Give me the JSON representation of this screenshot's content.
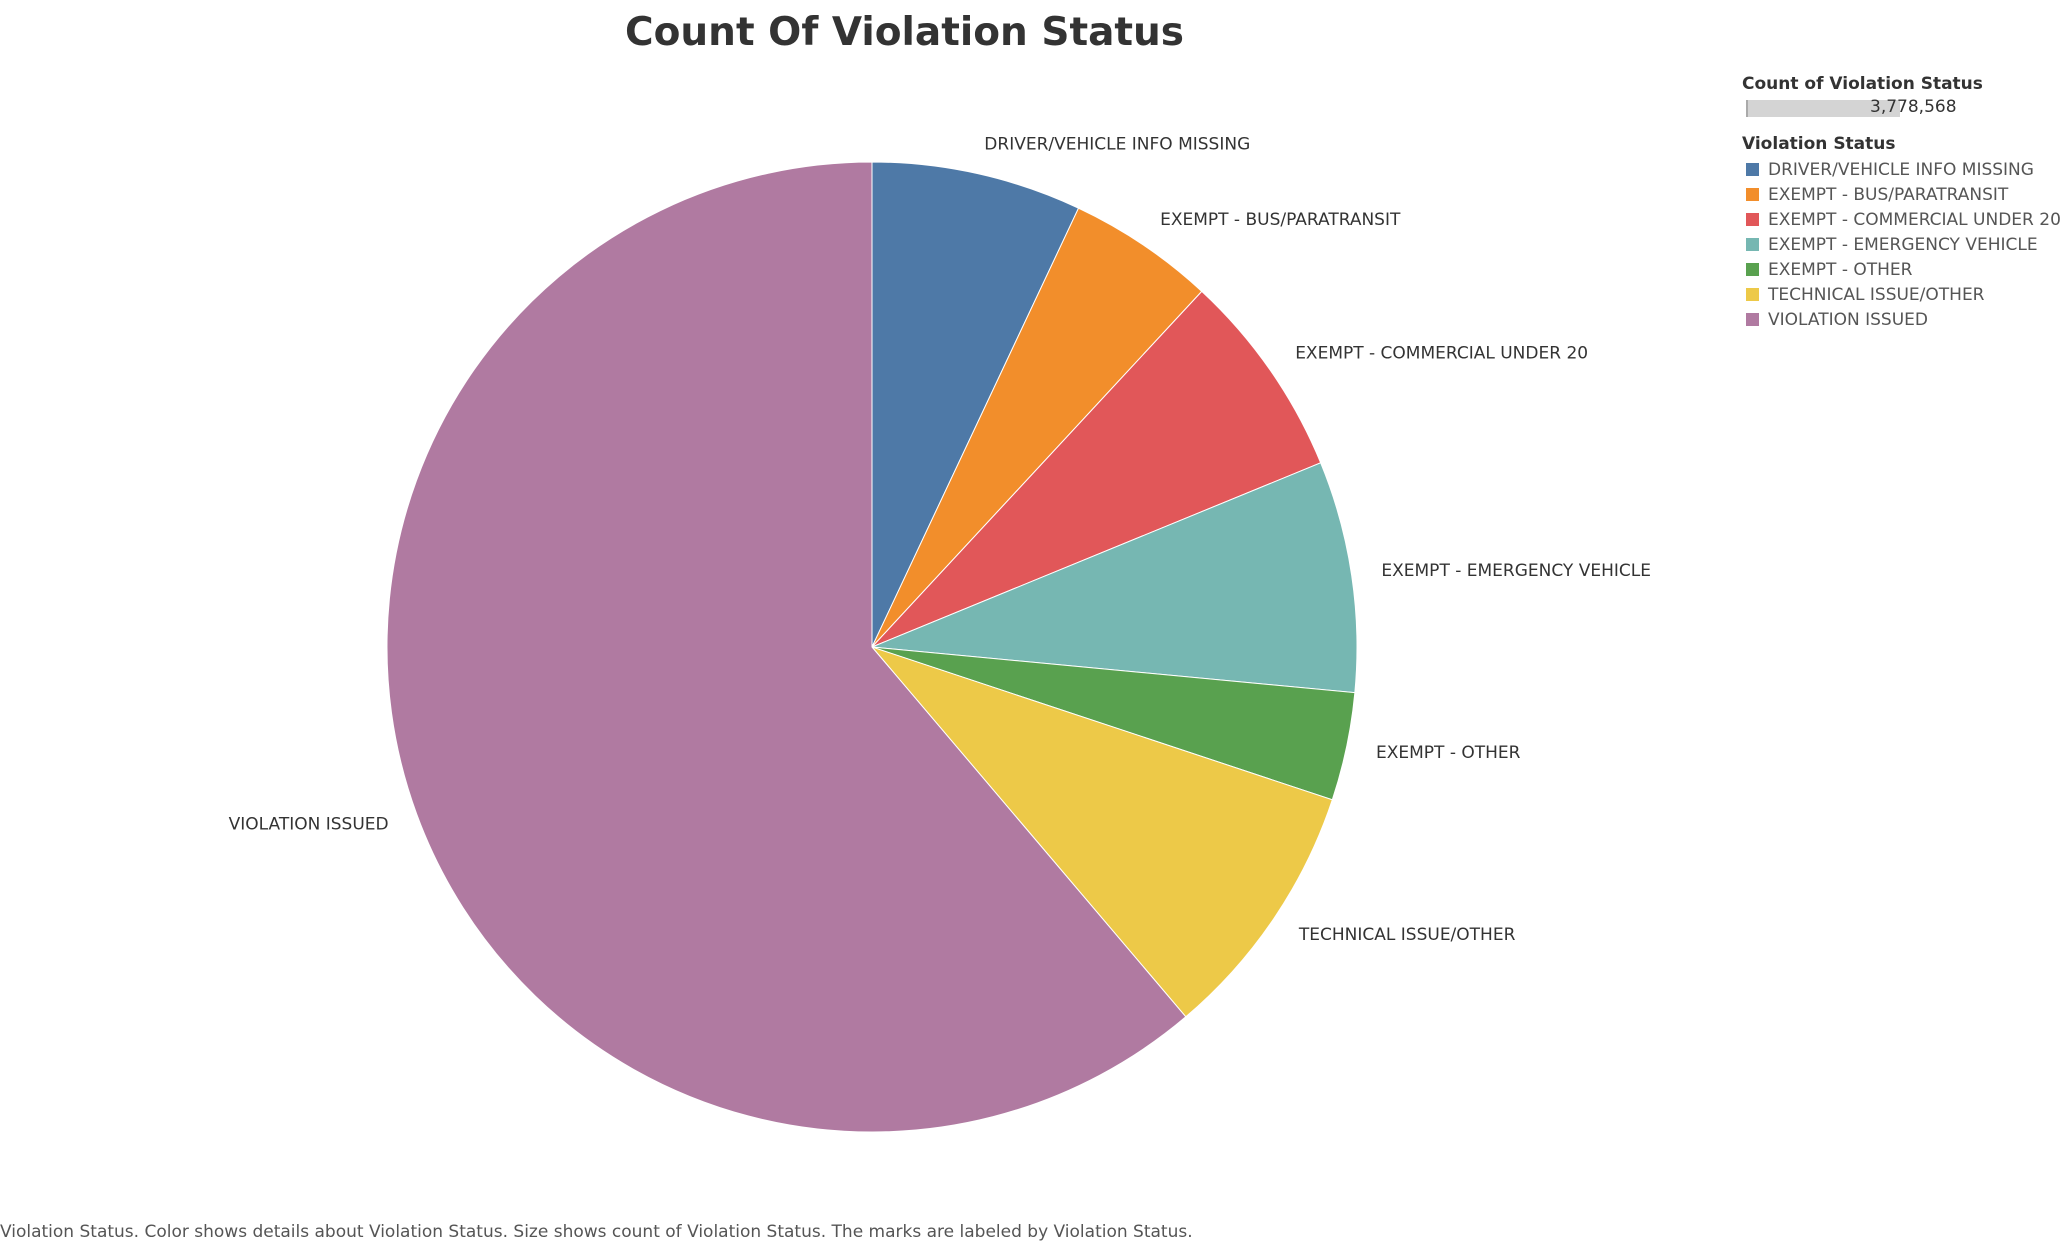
{
  "chart_data": {
    "type": "pie",
    "title": "Count Of Violation Status",
    "categories": [
      "DRIVER/VEHICLE INFO MISSING",
      "EXEMPT - BUS/PARATRANSIT",
      "EXEMPT - COMMERCIAL UNDER 20",
      "EXEMPT - EMERGENCY VEHICLE",
      "EXEMPT - OTHER",
      "TECHNICAL ISSUE/OTHER",
      "VIOLATION ISSUED"
    ],
    "values": [
      7.0,
      4.9,
      6.9,
      7.7,
      3.6,
      8.7,
      61.2
    ],
    "value_unit": "percent of total",
    "colors": [
      "#4e79a7",
      "#f28e2b",
      "#e15759",
      "#76b7b2",
      "#59a14f",
      "#edc948",
      "#b07aa1"
    ],
    "start_angle_deg": 0,
    "direction": "clockwise",
    "legend_position": "top-right"
  },
  "legend": {
    "size_title": "Count of Violation Status",
    "size_value": "3,778,568",
    "color_title": "Violation Status"
  },
  "caption": "Violation Status.  Color shows details about Violation Status.  Size shows count of Violation Status.  The marks are labeled by Violation Status."
}
